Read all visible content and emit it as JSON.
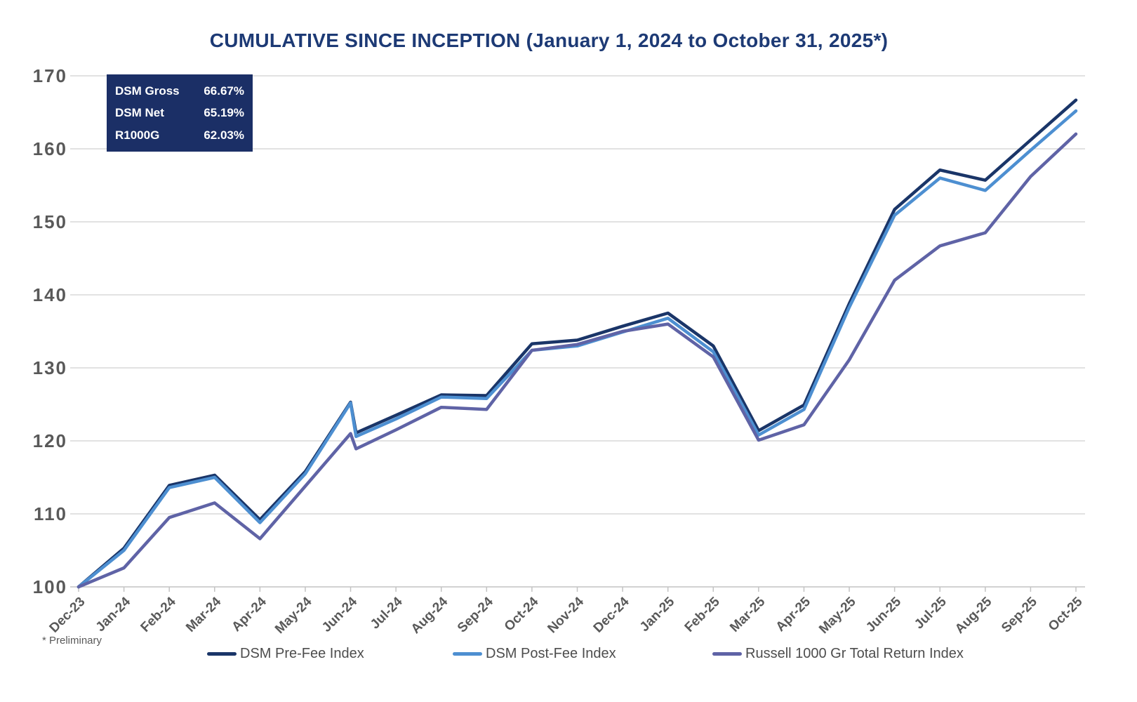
{
  "title": "CUMULATIVE SINCE INCEPTION (January 1, 2024 to October 31, 2025*)",
  "footnote": "* Preliminary",
  "colors": {
    "title_text": "#1d3a75",
    "axis_label": "#595959",
    "gridline": "#d8d8d8",
    "axis_line": "#c3c3c3",
    "stats_box_background": "#1b2f66",
    "stats_box_text": "#ffffff",
    "legend_text": "#4d4d4d"
  },
  "chart_data": {
    "type": "line",
    "title": "CUMULATIVE SINCE INCEPTION (January 1, 2024 to October 31, 2025*)",
    "xlabel": "",
    "ylabel": "",
    "ylim": [
      100,
      170
    ],
    "y_ticks": [
      100,
      110,
      120,
      130,
      140,
      150,
      160,
      170
    ],
    "grid": "horizontal",
    "legend_position": "bottom",
    "x_labels": [
      "Dec-23",
      "Jan-24",
      "Feb-24",
      "Mar-24",
      "Apr-24",
      "May-24",
      "Jun-24",
      "Jul-24",
      "Aug-24",
      "Sep-24",
      "Oct-24",
      "Nov-24",
      "Dec-24",
      "Jan-25",
      "Feb-25",
      "Mar-25",
      "Apr-25",
      "May-25",
      "Jun-25",
      "Jul-25",
      "Aug-25",
      "Sep-25",
      "Oct-25"
    ],
    "series": [
      {
        "name": "DSM Pre-Fee Index",
        "color": "#1a3568",
        "points": [
          [
            0,
            100
          ],
          [
            1,
            105.3
          ],
          [
            2,
            113.9
          ],
          [
            3,
            115.3
          ],
          [
            4,
            109.2
          ],
          [
            5,
            115.8
          ],
          [
            6,
            125.3
          ],
          [
            6.12,
            121.1
          ],
          [
            7,
            123.5
          ],
          [
            8,
            126.3
          ],
          [
            9,
            126.2
          ],
          [
            10,
            133.3
          ],
          [
            11,
            133.8
          ],
          [
            12,
            135.7
          ],
          [
            13,
            137.5
          ],
          [
            14,
            133.0
          ],
          [
            15,
            121.4
          ],
          [
            16,
            124.9
          ],
          [
            17,
            138.8
          ],
          [
            18,
            151.7
          ],
          [
            19,
            157.1
          ],
          [
            20,
            155.7
          ],
          [
            21,
            161.2
          ],
          [
            22,
            166.67
          ]
        ]
      },
      {
        "name": "DSM Post-Fee Index",
        "color": "#4d8fd1",
        "points": [
          [
            0,
            100
          ],
          [
            1,
            105.0
          ],
          [
            2,
            113.6
          ],
          [
            3,
            115.0
          ],
          [
            4,
            108.8
          ],
          [
            5,
            115.5
          ],
          [
            6,
            125.2
          ],
          [
            6.12,
            120.6
          ],
          [
            7,
            123.0
          ],
          [
            8,
            126.0
          ],
          [
            9,
            125.8
          ],
          [
            10,
            132.4
          ],
          [
            11,
            133.0
          ],
          [
            12,
            134.9
          ],
          [
            13,
            136.8
          ],
          [
            14,
            132.2
          ],
          [
            15,
            120.8
          ],
          [
            16,
            124.3
          ],
          [
            17,
            138.3
          ],
          [
            18,
            150.9
          ],
          [
            19,
            156.0
          ],
          [
            20,
            154.3
          ],
          [
            21,
            159.8
          ],
          [
            22,
            165.19
          ]
        ]
      },
      {
        "name": "Russell 1000 Gr Total Return Index",
        "color": "#5f63a6",
        "points": [
          [
            0,
            100
          ],
          [
            1,
            102.6
          ],
          [
            2,
            109.5
          ],
          [
            3,
            111.5
          ],
          [
            4,
            106.6
          ],
          [
            5,
            113.8
          ],
          [
            6,
            121.0
          ],
          [
            6.12,
            118.9
          ],
          [
            7,
            121.5
          ],
          [
            8,
            124.6
          ],
          [
            9,
            124.3
          ],
          [
            10,
            132.4
          ],
          [
            11,
            133.2
          ],
          [
            12,
            135.0
          ],
          [
            13,
            136.0
          ],
          [
            14,
            131.5
          ],
          [
            15,
            120.1
          ],
          [
            16,
            122.2
          ],
          [
            17,
            131.1
          ],
          [
            18,
            142.0
          ],
          [
            19,
            146.7
          ],
          [
            20,
            148.5
          ],
          [
            21,
            156.2
          ],
          [
            22,
            162.03
          ]
        ]
      }
    ],
    "stats_box": [
      {
        "label": "DSM Gross",
        "value": "66.67%"
      },
      {
        "label": "DSM Net",
        "value": "65.19%"
      },
      {
        "label": "R1000G",
        "value": "62.03%"
      }
    ]
  }
}
